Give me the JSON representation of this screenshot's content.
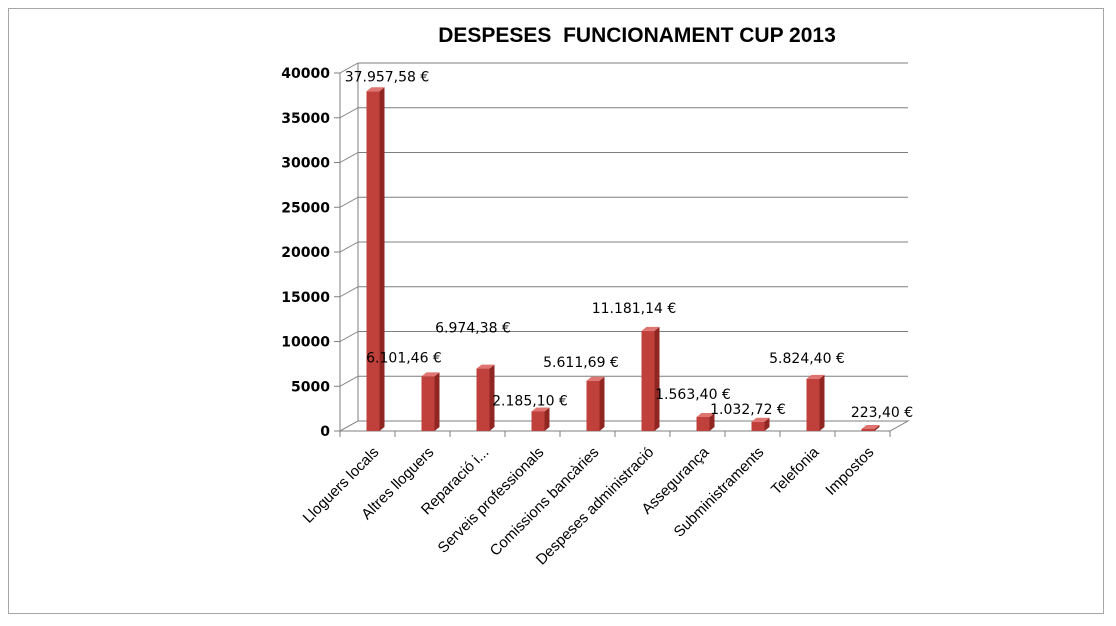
{
  "chart_data": {
    "type": "bar",
    "title": "DESPESES  FUNCIONAMENT CUP 2013",
    "xlabel": "",
    "ylabel": "",
    "ylim": [
      0,
      40000
    ],
    "yticks": [
      0,
      5000,
      10000,
      15000,
      20000,
      25000,
      30000,
      35000,
      40000
    ],
    "grid": true,
    "legend": "none",
    "bar_color": "#c0403c",
    "categories": [
      "Lloguers locals",
      "Altres lloguers",
      "Reparació i...",
      "Serveis professionals",
      "Comissions bancàries",
      "Despeses administració",
      "Assegurança",
      "Subministraments",
      "Telefonia",
      "Impostos"
    ],
    "values": [
      37957.58,
      6101.46,
      6974.38,
      2185.1,
      5611.69,
      11181.14,
      1563.4,
      1032.72,
      5824.4,
      223.4
    ],
    "data_labels": [
      "37.957,58 €",
      "6.101,46 €",
      "6.974,38 €",
      "2.185,10 €",
      "5.611,69 €",
      "11.181,14 €",
      "1.563,40 €",
      "1.032,72 €",
      "5.824,40 €",
      "223,40 €"
    ]
  }
}
